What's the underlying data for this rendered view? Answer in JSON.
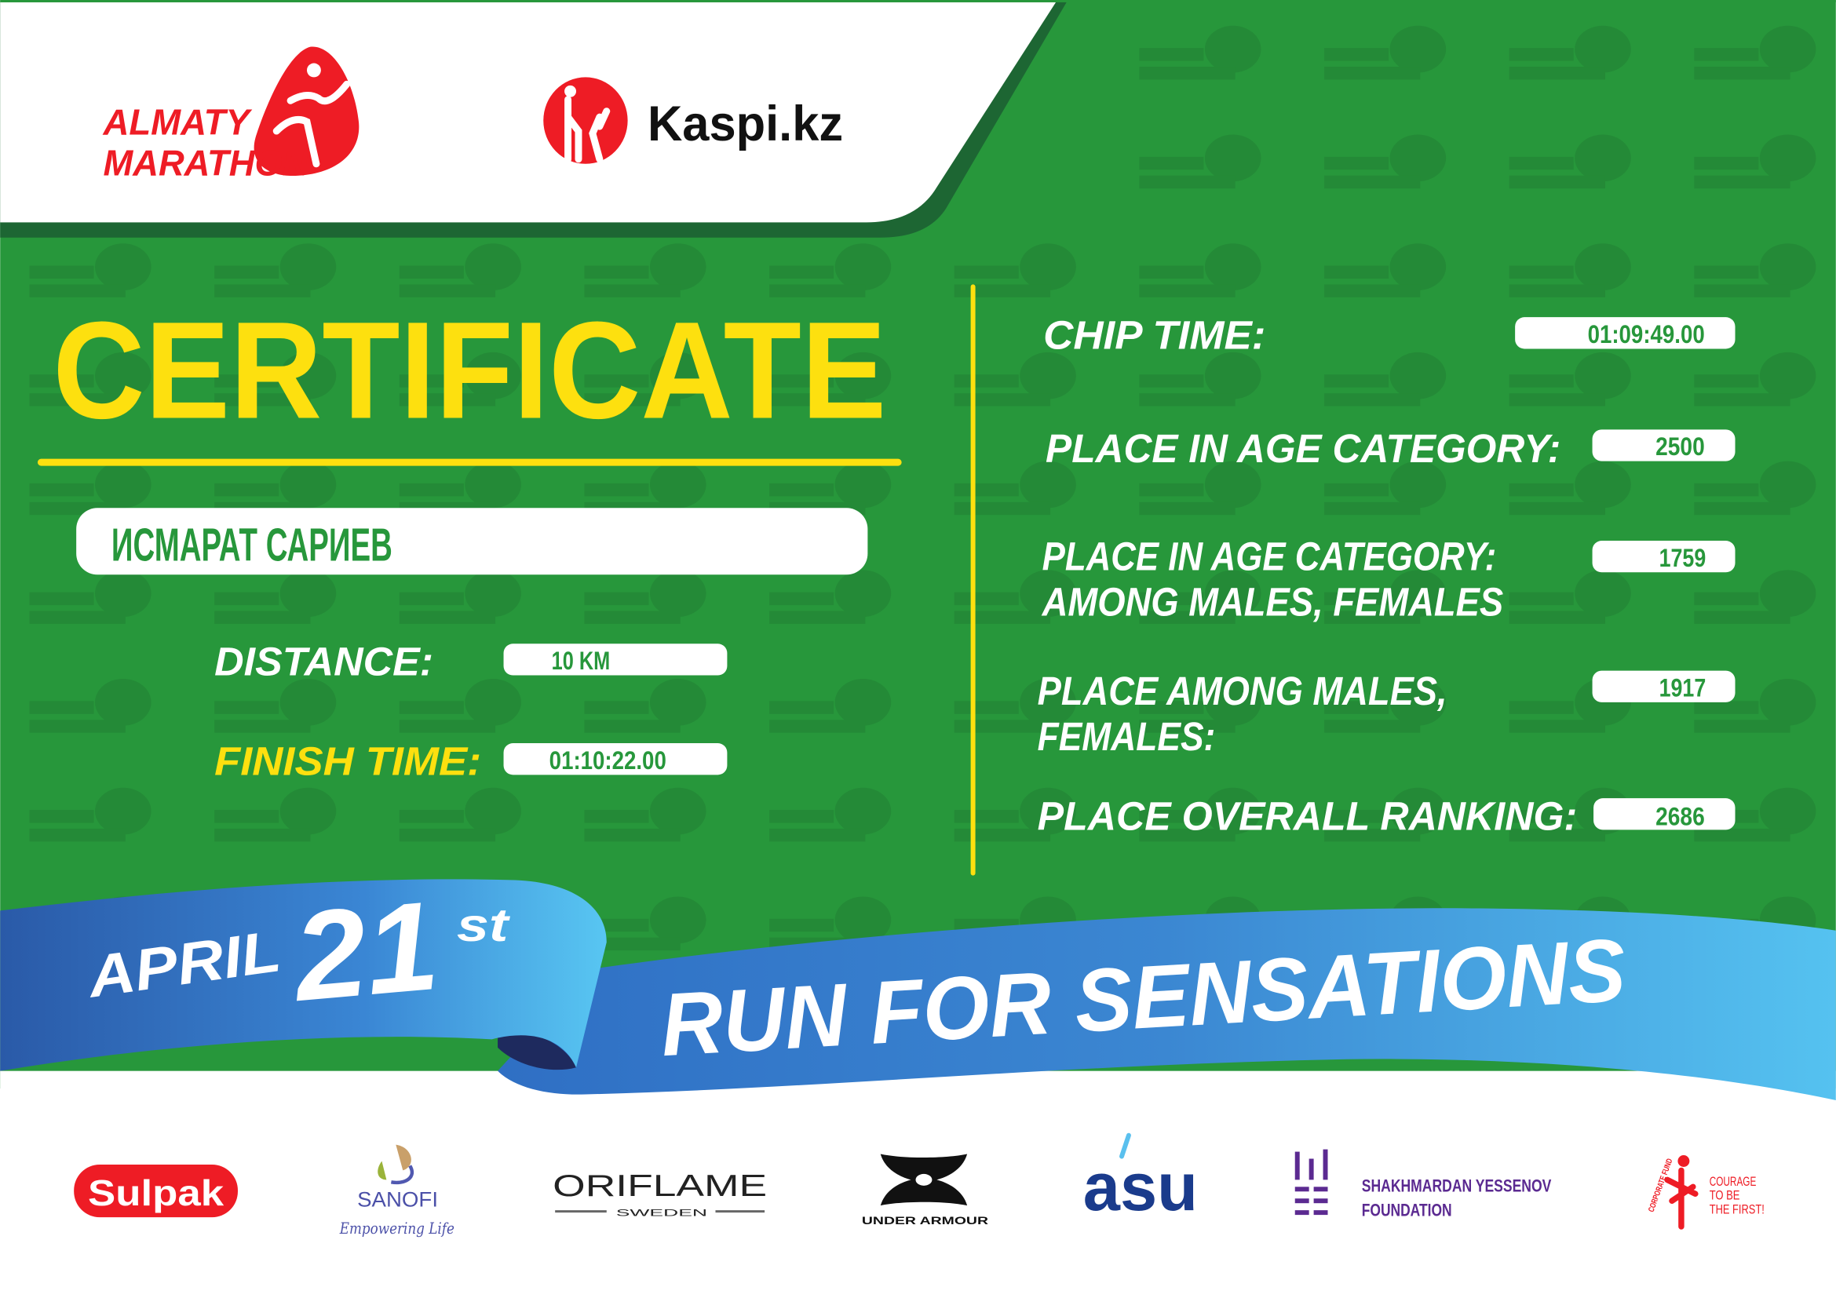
{
  "colors": {
    "background_green": "#27973b",
    "dark_green": "#1d6633",
    "watermark_green": "#248a37",
    "accent_yellow": "#fde00f",
    "ribbon_blue_dark": "#2a5fb0",
    "ribbon_blue_light": "#55c2f0",
    "brand_red": "#ee1c25"
  },
  "logos": {
    "almaty_marathon": {
      "line1": "ALMATY",
      "line2": "MARATHON"
    },
    "kaspi": "Kaspi.kz"
  },
  "certificate": {
    "title": "CERTIFICATE",
    "participant_name": "ИСМАРАТ САРИЕВ"
  },
  "left_fields": {
    "distance": {
      "label": "DISTANCE:",
      "value": "10 KM"
    },
    "finish_time": {
      "label": "FINISH TIME:",
      "value": "01:10:22.00"
    }
  },
  "right_fields": {
    "chip_time": {
      "label": "CHIP TIME:",
      "value": "01:09:49.00"
    },
    "place_age_category": {
      "label": "PLACE IN AGE CATEGORY:",
      "value": "2500"
    },
    "place_age_category_gender": {
      "label_line1": "PLACE IN AGE CATEGORY:",
      "label_line2": "AMONG MALES, FEMALES",
      "value": "1759"
    },
    "place_gender": {
      "label_line1": "PLACE AMONG MALES,",
      "label_line2": "FEMALES:",
      "value": "1917"
    },
    "place_overall": {
      "label": "PLACE OVERALL RANKING:",
      "value": "2686"
    }
  },
  "ribbon": {
    "month": "APRIL",
    "day": "21",
    "suffix": "st",
    "slogan": "RUN FOR SENSATIONS"
  },
  "sponsors": {
    "sulpak": "Sulpak",
    "sanofi": {
      "name": "SANOFI",
      "tagline": "Empowering Life"
    },
    "oriflame": {
      "name": "ORIFLAME",
      "sub": "SWEDEN"
    },
    "under_armour": "UNDER ARMOUR",
    "asu": "asu",
    "yessenov": {
      "line1": "SHAKHMARDAN YESSENOV",
      "line2": "FOUNDATION"
    },
    "courage": {
      "arc": "CORPORATE FUND",
      "line1": "COURAGE",
      "line2": "TO BE",
      "line3": "THE FIRST!"
    }
  }
}
